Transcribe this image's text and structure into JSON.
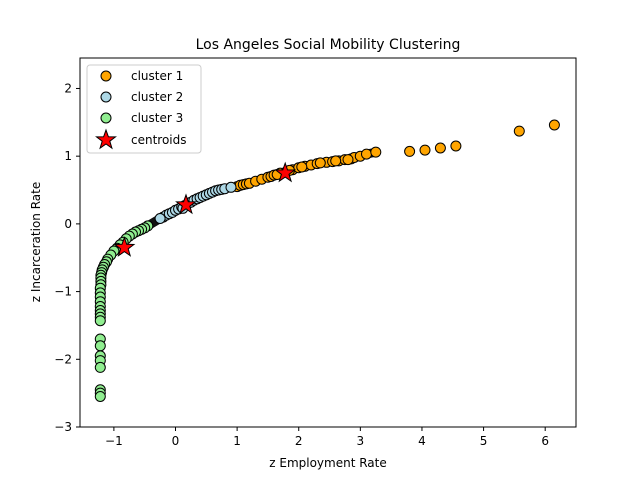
{
  "chart_data": {
    "type": "scatter",
    "title": "Los Angeles Social Mobility Clustering",
    "xlabel": "z Employment Rate",
    "ylabel": "z Incarceration Rate",
    "xlim": [
      -1.55,
      6.5
    ],
    "ylim": [
      -3.0,
      2.45
    ],
    "xticks": [
      -1,
      0,
      1,
      2,
      3,
      4,
      5,
      6
    ],
    "yticks": [
      -3,
      -2,
      -1,
      0,
      1,
      2
    ],
    "legend_position": "top-left",
    "grid": false,
    "colors": {
      "cluster_1": "#ffa500",
      "cluster_2": "#add8e6",
      "cluster_3": "#90ee90",
      "centroids": "#ff0000",
      "edge": "#000000"
    },
    "series": [
      {
        "name": "cluster 1",
        "points": [
          [
            1.0,
            0.55
          ],
          [
            1.05,
            0.57
          ],
          [
            1.1,
            0.58
          ],
          [
            1.15,
            0.59
          ],
          [
            1.2,
            0.6
          ],
          [
            1.3,
            0.63
          ],
          [
            1.4,
            0.66
          ],
          [
            1.5,
            0.69
          ],
          [
            1.55,
            0.7
          ],
          [
            1.6,
            0.72
          ],
          [
            1.7,
            0.75
          ],
          [
            1.8,
            0.77
          ],
          [
            1.9,
            0.8
          ],
          [
            2.0,
            0.83
          ],
          [
            2.1,
            0.85
          ],
          [
            2.2,
            0.87
          ],
          [
            2.3,
            0.89
          ],
          [
            2.45,
            0.91
          ],
          [
            2.55,
            0.92
          ],
          [
            2.65,
            0.93
          ],
          [
            2.75,
            0.95
          ],
          [
            2.85,
            0.96
          ],
          [
            2.9,
            0.98
          ],
          [
            3.0,
            1.0
          ],
          [
            3.1,
            1.03
          ],
          [
            3.25,
            1.06
          ],
          [
            3.8,
            1.07
          ],
          [
            4.05,
            1.09
          ],
          [
            4.3,
            1.12
          ],
          [
            4.55,
            1.15
          ],
          [
            5.58,
            1.37
          ],
          [
            6.15,
            1.46
          ],
          [
            1.65,
            0.73
          ],
          [
            1.85,
            0.79
          ],
          [
            2.05,
            0.84
          ],
          [
            2.35,
            0.9
          ],
          [
            2.6,
            0.93
          ],
          [
            2.8,
            0.95
          ]
        ]
      },
      {
        "name": "cluster 2",
        "points": [
          [
            -0.2,
            0.1
          ],
          [
            -0.15,
            0.13
          ],
          [
            -0.1,
            0.15
          ],
          [
            -0.05,
            0.17
          ],
          [
            0.0,
            0.2
          ],
          [
            0.05,
            0.22
          ],
          [
            0.1,
            0.25
          ],
          [
            0.15,
            0.27
          ],
          [
            0.2,
            0.3
          ],
          [
            0.25,
            0.32
          ],
          [
            0.3,
            0.35
          ],
          [
            0.35,
            0.37
          ],
          [
            0.4,
            0.39
          ],
          [
            0.45,
            0.41
          ],
          [
            0.5,
            0.43
          ],
          [
            0.55,
            0.45
          ],
          [
            0.6,
            0.47
          ],
          [
            0.65,
            0.49
          ],
          [
            0.7,
            0.5
          ],
          [
            0.75,
            0.51
          ],
          [
            0.8,
            0.52
          ],
          [
            0.9,
            0.54
          ],
          [
            -0.25,
            0.08
          ],
          [
            0.12,
            0.23
          ]
        ]
      },
      {
        "name": "cluster 3",
        "points": [
          [
            -0.45,
            -0.03
          ],
          [
            -0.5,
            -0.06
          ],
          [
            -0.55,
            -0.08
          ],
          [
            -0.6,
            -0.1
          ],
          [
            -0.65,
            -0.12
          ],
          [
            -0.7,
            -0.15
          ],
          [
            -0.75,
            -0.18
          ],
          [
            -0.8,
            -0.22
          ],
          [
            -0.85,
            -0.27
          ],
          [
            -0.9,
            -0.31
          ],
          [
            -0.95,
            -0.36
          ],
          [
            -1.0,
            -0.4
          ],
          [
            -1.05,
            -0.46
          ],
          [
            -1.1,
            -0.52
          ],
          [
            -1.12,
            -0.56
          ],
          [
            -1.15,
            -0.6
          ],
          [
            -1.17,
            -0.64
          ],
          [
            -1.19,
            -0.68
          ],
          [
            -1.2,
            -0.72
          ],
          [
            -1.21,
            -0.76
          ],
          [
            -1.21,
            -0.8
          ],
          [
            -1.21,
            -0.85
          ],
          [
            -1.21,
            -0.9
          ],
          [
            -1.22,
            -0.95
          ],
          [
            -1.22,
            -1.02
          ],
          [
            -1.22,
            -1.08
          ],
          [
            -1.22,
            -1.15
          ],
          [
            -1.22,
            -1.22
          ],
          [
            -1.22,
            -1.28
          ],
          [
            -1.22,
            -1.33
          ],
          [
            -1.22,
            -1.38
          ],
          [
            -1.22,
            -1.43
          ],
          [
            -1.22,
            -1.7
          ],
          [
            -1.22,
            -1.8
          ],
          [
            -1.22,
            -1.95
          ],
          [
            -1.22,
            -2.02
          ],
          [
            -1.22,
            -2.12
          ],
          [
            -1.22,
            -2.45
          ],
          [
            -1.22,
            -2.5
          ],
          [
            -1.22,
            -2.55
          ]
        ]
      }
    ],
    "centroids": {
      "name": "centroids",
      "points": [
        [
          -0.83,
          -0.35
        ],
        [
          0.17,
          0.28
        ],
        [
          1.78,
          0.75
        ]
      ]
    }
  }
}
